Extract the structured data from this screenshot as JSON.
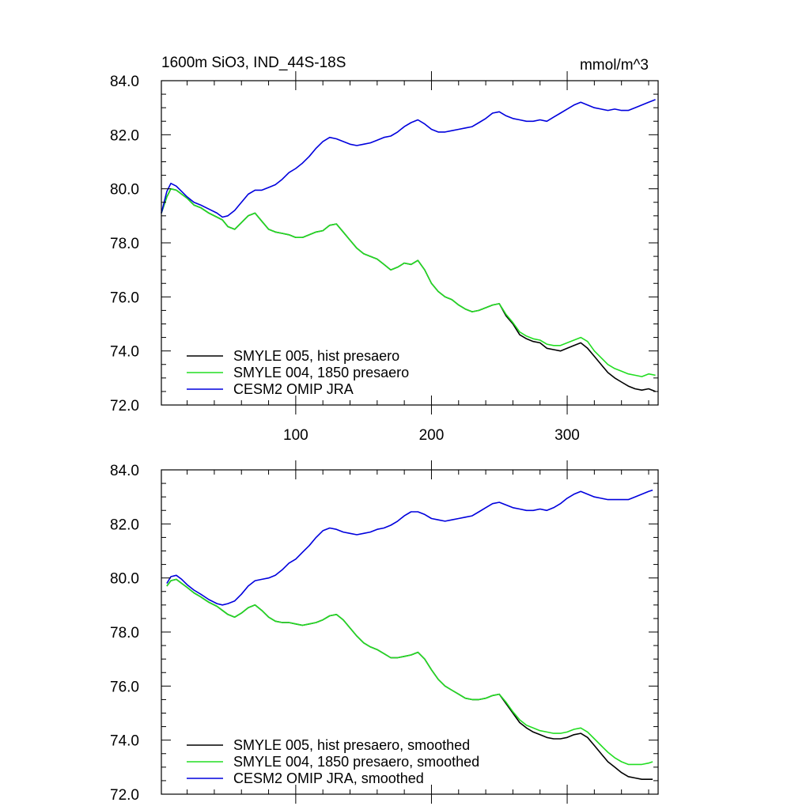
{
  "chart_data": [
    {
      "type": "line",
      "title": "1600m SiO3, IND_44S-18S",
      "units": "mmol/m^3",
      "xlabel": "",
      "ylabel": "",
      "xlim": [
        1,
        367
      ],
      "ylim": [
        72.0,
        84.0
      ],
      "yticks": [
        "72.0",
        "74.0",
        "76.0",
        "78.0",
        "80.0",
        "82.0",
        "84.0"
      ],
      "xticks": [
        "100",
        "200",
        "300"
      ],
      "legend_position": "bottom-left",
      "series": [
        {
          "name": "SMYLE 005, hist presaero",
          "color": "#000000",
          "x": [
            1,
            5,
            8,
            12,
            16,
            20,
            25,
            30,
            36,
            42,
            46,
            50,
            55,
            60,
            65,
            70,
            75,
            80,
            85,
            90,
            95,
            100,
            105,
            110,
            115,
            120,
            125,
            130,
            135,
            140,
            145,
            150,
            155,
            160,
            165,
            170,
            175,
            180,
            185,
            190,
            195,
            200,
            205,
            210,
            215,
            220,
            225,
            230,
            235,
            240,
            245,
            250,
            255,
            260,
            265,
            270,
            275,
            280,
            285,
            290,
            295,
            300,
            305,
            310,
            315,
            320,
            325,
            330,
            335,
            340,
            345,
            350,
            355,
            360,
            365
          ],
          "values": [
            79.1,
            79.7,
            80.0,
            79.95,
            79.8,
            79.65,
            79.4,
            79.3,
            79.1,
            78.95,
            78.85,
            78.6,
            78.5,
            78.75,
            79.0,
            79.1,
            78.8,
            78.5,
            78.4,
            78.35,
            78.3,
            78.2,
            78.2,
            78.3,
            78.4,
            78.45,
            78.65,
            78.7,
            78.4,
            78.1,
            77.8,
            77.6,
            77.5,
            77.4,
            77.2,
            77.0,
            77.1,
            77.25,
            77.2,
            77.35,
            77.0,
            76.5,
            76.2,
            76.0,
            75.9,
            75.7,
            75.55,
            75.45,
            75.5,
            75.6,
            75.7,
            75.75,
            75.3,
            75.0,
            74.6,
            74.45,
            74.35,
            74.3,
            74.1,
            74.05,
            74.0,
            74.1,
            74.2,
            74.3,
            74.1,
            73.8,
            73.5,
            73.2,
            73.0,
            72.85,
            72.7,
            72.6,
            72.55,
            72.6,
            72.5
          ]
        },
        {
          "name": "SMYLE 004, 1850 presaero",
          "color": "#22dd22",
          "x": [
            1,
            5,
            8,
            12,
            16,
            20,
            25,
            30,
            36,
            42,
            46,
            50,
            55,
            60,
            65,
            70,
            75,
            80,
            85,
            90,
            95,
            100,
            105,
            110,
            115,
            120,
            125,
            130,
            135,
            140,
            145,
            150,
            155,
            160,
            165,
            170,
            175,
            180,
            185,
            190,
            195,
            200,
            205,
            210,
            215,
            220,
            225,
            230,
            235,
            240,
            245,
            250,
            255,
            260,
            265,
            270,
            275,
            280,
            285,
            290,
            295,
            300,
            305,
            310,
            315,
            320,
            325,
            330,
            335,
            340,
            345,
            350,
            355,
            360,
            365
          ],
          "values": [
            79.1,
            79.7,
            80.0,
            79.95,
            79.8,
            79.65,
            79.4,
            79.3,
            79.1,
            78.95,
            78.85,
            78.6,
            78.5,
            78.75,
            79.0,
            79.1,
            78.8,
            78.5,
            78.4,
            78.35,
            78.3,
            78.2,
            78.2,
            78.3,
            78.4,
            78.45,
            78.65,
            78.7,
            78.4,
            78.1,
            77.8,
            77.6,
            77.5,
            77.4,
            77.2,
            77.0,
            77.1,
            77.25,
            77.2,
            77.35,
            77.0,
            76.5,
            76.2,
            76.0,
            75.9,
            75.7,
            75.55,
            75.45,
            75.5,
            75.6,
            75.7,
            75.75,
            75.35,
            75.05,
            74.7,
            74.55,
            74.45,
            74.4,
            74.25,
            74.2,
            74.2,
            74.3,
            74.4,
            74.5,
            74.35,
            74.0,
            73.75,
            73.5,
            73.35,
            73.25,
            73.15,
            73.1,
            73.05,
            73.15,
            73.1
          ]
        },
        {
          "name": "CESM2 OMIP JRA",
          "color": "#0000dd",
          "x": [
            1,
            5,
            8,
            12,
            16,
            20,
            25,
            30,
            36,
            42,
            46,
            50,
            55,
            60,
            65,
            70,
            75,
            80,
            85,
            90,
            95,
            100,
            105,
            110,
            115,
            120,
            125,
            130,
            135,
            140,
            145,
            150,
            155,
            160,
            165,
            170,
            175,
            180,
            185,
            190,
            195,
            200,
            205,
            210,
            215,
            220,
            225,
            230,
            235,
            240,
            245,
            250,
            255,
            260,
            265,
            270,
            275,
            280,
            285,
            290,
            295,
            300,
            305,
            310,
            315,
            320,
            325,
            330,
            335,
            340,
            345,
            350,
            355,
            360,
            365
          ],
          "values": [
            79.1,
            79.9,
            80.2,
            80.1,
            79.9,
            79.7,
            79.5,
            79.4,
            79.25,
            79.1,
            78.95,
            79.0,
            79.2,
            79.5,
            79.8,
            79.95,
            79.95,
            80.05,
            80.15,
            80.35,
            80.6,
            80.75,
            80.95,
            81.2,
            81.5,
            81.75,
            81.9,
            81.85,
            81.75,
            81.65,
            81.6,
            81.65,
            81.7,
            81.8,
            81.9,
            81.95,
            82.1,
            82.3,
            82.45,
            82.55,
            82.4,
            82.2,
            82.1,
            82.1,
            82.15,
            82.2,
            82.25,
            82.3,
            82.45,
            82.6,
            82.8,
            82.85,
            82.7,
            82.6,
            82.55,
            82.5,
            82.5,
            82.55,
            82.5,
            82.65,
            82.8,
            82.95,
            83.1,
            83.2,
            83.1,
            83.0,
            82.95,
            82.9,
            82.95,
            82.9,
            82.9,
            83.0,
            83.1,
            83.2,
            83.3
          ]
        }
      ]
    },
    {
      "type": "line",
      "title": "",
      "xlabel": "",
      "ylabel": "",
      "xlim": [
        1,
        367
      ],
      "ylim": [
        72.0,
        84.0
      ],
      "yticks": [
        "72.0",
        "74.0",
        "76.0",
        "78.0",
        "80.0",
        "82.0",
        "84.0"
      ],
      "legend_position": "bottom-left",
      "series": [
        {
          "name": "SMYLE 005, hist presaero, smoothed",
          "color": "#000000",
          "x": [
            5,
            8,
            12,
            16,
            20,
            25,
            30,
            36,
            42,
            46,
            50,
            55,
            60,
            65,
            70,
            75,
            80,
            85,
            90,
            95,
            100,
            105,
            110,
            115,
            120,
            125,
            130,
            135,
            140,
            145,
            150,
            155,
            160,
            165,
            170,
            175,
            180,
            185,
            190,
            195,
            200,
            205,
            210,
            215,
            220,
            225,
            230,
            235,
            240,
            245,
            250,
            255,
            260,
            265,
            270,
            275,
            280,
            285,
            290,
            295,
            300,
            305,
            310,
            315,
            320,
            325,
            330,
            335,
            340,
            345,
            350,
            355,
            360,
            363
          ],
          "values": [
            79.7,
            79.9,
            79.95,
            79.8,
            79.65,
            79.45,
            79.3,
            79.1,
            78.95,
            78.8,
            78.65,
            78.55,
            78.7,
            78.9,
            79.0,
            78.8,
            78.55,
            78.4,
            78.35,
            78.35,
            78.3,
            78.25,
            78.3,
            78.35,
            78.45,
            78.6,
            78.65,
            78.45,
            78.15,
            77.85,
            77.6,
            77.45,
            77.35,
            77.2,
            77.05,
            77.05,
            77.1,
            77.15,
            77.25,
            77.0,
            76.6,
            76.25,
            76.0,
            75.85,
            75.7,
            75.55,
            75.5,
            75.5,
            75.55,
            75.65,
            75.7,
            75.35,
            75.0,
            74.65,
            74.45,
            74.3,
            74.2,
            74.1,
            74.05,
            74.05,
            74.1,
            74.2,
            74.25,
            74.1,
            73.8,
            73.5,
            73.2,
            73.0,
            72.8,
            72.65,
            72.6,
            72.55,
            72.55,
            72.55
          ]
        },
        {
          "name": "SMYLE 004, 1850 presaero, smoothed",
          "color": "#22dd22",
          "x": [
            5,
            8,
            12,
            16,
            20,
            25,
            30,
            36,
            42,
            46,
            50,
            55,
            60,
            65,
            70,
            75,
            80,
            85,
            90,
            95,
            100,
            105,
            110,
            115,
            120,
            125,
            130,
            135,
            140,
            145,
            150,
            155,
            160,
            165,
            170,
            175,
            180,
            185,
            190,
            195,
            200,
            205,
            210,
            215,
            220,
            225,
            230,
            235,
            240,
            245,
            250,
            255,
            260,
            265,
            270,
            275,
            280,
            285,
            290,
            295,
            300,
            305,
            310,
            315,
            320,
            325,
            330,
            335,
            340,
            345,
            350,
            355,
            360,
            363
          ],
          "values": [
            79.7,
            79.9,
            79.95,
            79.8,
            79.65,
            79.45,
            79.3,
            79.1,
            78.95,
            78.8,
            78.65,
            78.55,
            78.7,
            78.9,
            79.0,
            78.8,
            78.55,
            78.4,
            78.35,
            78.35,
            78.3,
            78.25,
            78.3,
            78.35,
            78.45,
            78.6,
            78.65,
            78.45,
            78.15,
            77.85,
            77.6,
            77.45,
            77.35,
            77.2,
            77.05,
            77.05,
            77.1,
            77.15,
            77.25,
            77.0,
            76.6,
            76.25,
            76.0,
            75.85,
            75.7,
            75.55,
            75.5,
            75.5,
            75.55,
            75.65,
            75.7,
            75.4,
            75.05,
            74.75,
            74.55,
            74.45,
            74.35,
            74.3,
            74.25,
            74.25,
            74.3,
            74.4,
            74.45,
            74.3,
            74.05,
            73.8,
            73.55,
            73.35,
            73.2,
            73.1,
            73.1,
            73.1,
            73.15,
            73.2
          ]
        },
        {
          "name": "CESM2 OMIP JRA, smoothed",
          "color": "#0000dd",
          "x": [
            5,
            8,
            12,
            16,
            20,
            25,
            30,
            36,
            42,
            46,
            50,
            55,
            60,
            65,
            70,
            75,
            80,
            85,
            90,
            95,
            100,
            105,
            110,
            115,
            120,
            125,
            130,
            135,
            140,
            145,
            150,
            155,
            160,
            165,
            170,
            175,
            180,
            185,
            190,
            195,
            200,
            205,
            210,
            215,
            220,
            225,
            230,
            235,
            240,
            245,
            250,
            255,
            260,
            265,
            270,
            275,
            280,
            285,
            290,
            295,
            300,
            305,
            310,
            315,
            320,
            325,
            330,
            335,
            340,
            345,
            350,
            355,
            360,
            363
          ],
          "values": [
            79.8,
            80.05,
            80.1,
            79.95,
            79.75,
            79.55,
            79.4,
            79.2,
            79.05,
            79.0,
            79.05,
            79.15,
            79.4,
            79.7,
            79.9,
            79.95,
            80.0,
            80.1,
            80.3,
            80.55,
            80.7,
            80.95,
            81.2,
            81.5,
            81.75,
            81.85,
            81.8,
            81.7,
            81.65,
            81.6,
            81.65,
            81.7,
            81.8,
            81.85,
            81.95,
            82.1,
            82.3,
            82.45,
            82.45,
            82.35,
            82.2,
            82.15,
            82.1,
            82.15,
            82.2,
            82.25,
            82.3,
            82.45,
            82.6,
            82.75,
            82.8,
            82.7,
            82.6,
            82.55,
            82.5,
            82.5,
            82.55,
            82.5,
            82.6,
            82.75,
            82.95,
            83.1,
            83.2,
            83.1,
            83.0,
            82.95,
            82.9,
            82.9,
            82.9,
            82.9,
            83.0,
            83.1,
            83.2,
            83.25
          ]
        }
      ]
    }
  ]
}
